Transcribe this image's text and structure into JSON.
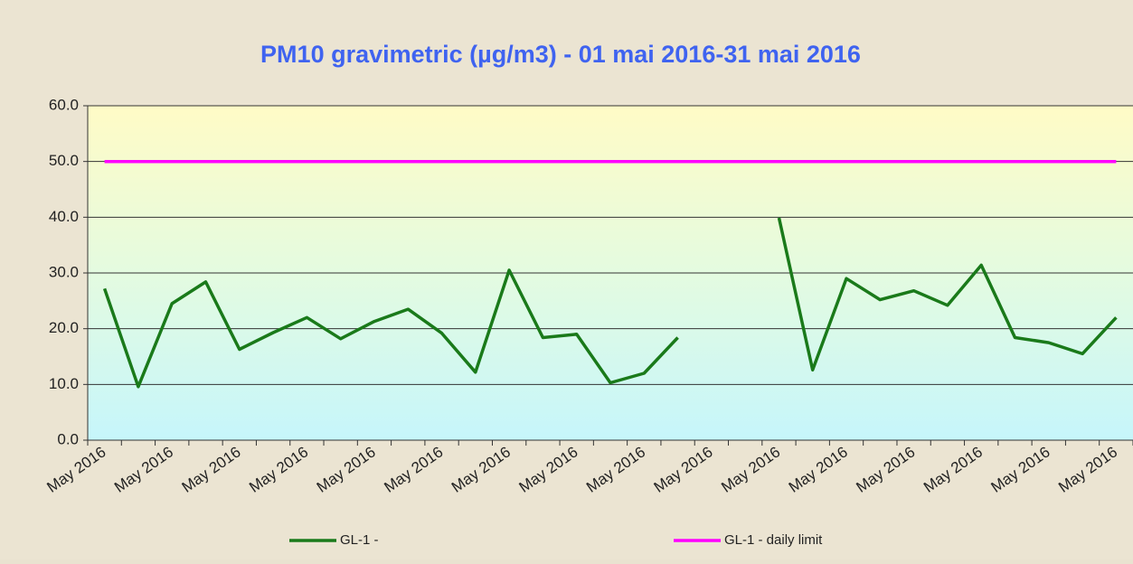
{
  "chart_data": {
    "type": "line",
    "title": "PM10 gravimetric (µg/m3) - 01 mai 2016-31 mai 2016",
    "categories": [
      "May 2016",
      null,
      "May 2016",
      null,
      "May 2016",
      null,
      "May 2016",
      null,
      "May 2016",
      null,
      "May 2016",
      null,
      "May 2016",
      null,
      "May 2016",
      null,
      "May 2016",
      null,
      "May 2016",
      null,
      "May 2016",
      null,
      "May 2016",
      null,
      "May 2016",
      null,
      "May 2016",
      null,
      "May 2016",
      null,
      "May 2016"
    ],
    "series": [
      {
        "name": "GL-1 -",
        "color": "#1a7a1a",
        "values": [
          27.2,
          9.6,
          24.5,
          28.4,
          16.3,
          19.3,
          22.0,
          18.2,
          21.3,
          23.5,
          19.2,
          12.2,
          30.5,
          18.4,
          19.0,
          10.3,
          12.0,
          18.4,
          null,
          null,
          39.9,
          12.6,
          29.0,
          25.2,
          26.8,
          24.2,
          31.4,
          18.4,
          17.5,
          15.5,
          22.0
        ]
      },
      {
        "name": "GL-1 - daily limit",
        "color": "#ff00ff",
        "values": [
          50,
          50,
          50,
          50,
          50,
          50,
          50,
          50,
          50,
          50,
          50,
          50,
          50,
          50,
          50,
          50,
          50,
          50,
          50,
          50,
          50,
          50,
          50,
          50,
          50,
          50,
          50,
          50,
          50,
          50,
          50
        ]
      }
    ],
    "ylim": [
      0,
      60
    ],
    "yticks": [
      {
        "value": 0,
        "label": "0.0"
      },
      {
        "value": 10,
        "label": "10.0"
      },
      {
        "value": 20,
        "label": "20.0"
      },
      {
        "value": 30,
        "label": "30.0"
      },
      {
        "value": 40,
        "label": "40.0"
      },
      {
        "value": 50,
        "label": "50.0"
      },
      {
        "value": 60,
        "label": "60.0"
      }
    ],
    "grid": true,
    "legend": "bottom"
  }
}
